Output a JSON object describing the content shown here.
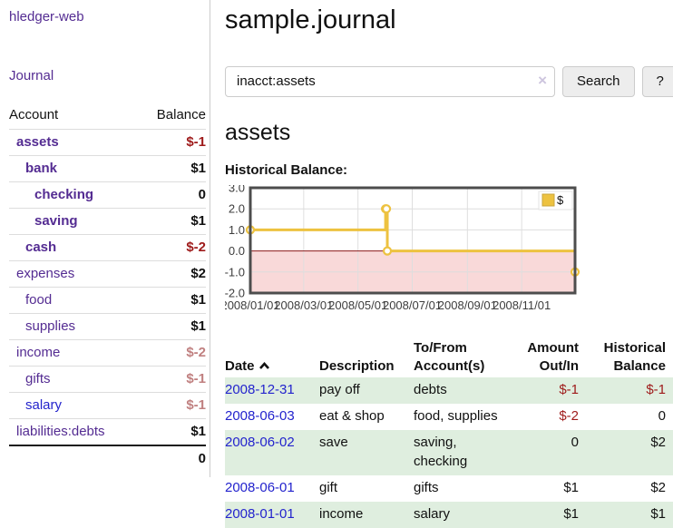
{
  "app": {
    "brand": "hledger-web",
    "nav_journal": "Journal"
  },
  "sidebar": {
    "accounts_header": {
      "account": "Account",
      "balance": "Balance"
    },
    "rows": [
      {
        "name": "assets",
        "indent": 1,
        "bold": true,
        "name_color": "purple",
        "balance": "$-1",
        "balance_style": "negative"
      },
      {
        "name": "bank",
        "indent": 2,
        "bold": true,
        "name_color": "purple",
        "balance": "$1",
        "balance_style": "normal"
      },
      {
        "name": "checking",
        "indent": 3,
        "bold": true,
        "name_color": "purple",
        "balance": "0",
        "balance_style": "normal"
      },
      {
        "name": "saving",
        "indent": 3,
        "bold": true,
        "name_color": "purple",
        "balance": "$1",
        "balance_style": "normal"
      },
      {
        "name": "cash",
        "indent": 2,
        "bold": true,
        "name_color": "purple",
        "balance": "$-2",
        "balance_style": "negative"
      },
      {
        "name": "expenses",
        "indent": 1,
        "bold": false,
        "name_color": "purple",
        "balance": "$2",
        "balance_style": "normal"
      },
      {
        "name": "food",
        "indent": 2,
        "bold": false,
        "name_color": "purple",
        "balance": "$1",
        "balance_style": "normal"
      },
      {
        "name": "supplies",
        "indent": 2,
        "bold": false,
        "name_color": "purple",
        "balance": "$1",
        "balance_style": "normal"
      },
      {
        "name": "income",
        "indent": 1,
        "bold": false,
        "name_color": "purple",
        "balance": "$-2",
        "balance_style": "soft_negative"
      },
      {
        "name": "gifts",
        "indent": 2,
        "bold": false,
        "name_color": "purple",
        "balance": "$-1",
        "balance_style": "soft_negative"
      },
      {
        "name": "salary",
        "indent": 2,
        "bold": false,
        "name_color": "blue",
        "balance": "$-1",
        "balance_style": "soft_negative"
      },
      {
        "name": "liabilities:debts",
        "indent": 1,
        "bold": false,
        "name_color": "purple",
        "balance": "$1",
        "balance_style": "normal"
      }
    ],
    "total": "0"
  },
  "header": {
    "title": "sample.journal"
  },
  "search": {
    "value": "inacct:assets",
    "clear_icon": "×",
    "button": "Search",
    "help_button": "?"
  },
  "account_page": {
    "title": "assets",
    "chart_label": "Historical Balance:"
  },
  "chart_data": {
    "type": "line",
    "step": true,
    "title": "Historical Balance:",
    "series": [
      {
        "name": "$",
        "color": "#edc240",
        "points": [
          {
            "date": "2008-01-01",
            "value": 1
          },
          {
            "date": "2008-06-01",
            "value": 2
          },
          {
            "date": "2008-06-02",
            "value": 2
          },
          {
            "date": "2008-06-03",
            "value": 0
          },
          {
            "date": "2008-12-31",
            "value": -1
          }
        ]
      }
    ],
    "x_range": [
      "2008-01-01",
      "2008-12-31"
    ],
    "x_ticks": [
      "2008/01/01",
      "2008/03/01",
      "2008/05/01",
      "2008/07/01",
      "2008/09/01",
      "2008/11/01"
    ],
    "y_ticks": [
      "3.0",
      "2.0",
      "1.0",
      "0.0",
      "-1.0",
      "-2.0"
    ],
    "ylim": [
      -2,
      3
    ],
    "grid": true,
    "legend": {
      "label": "$",
      "position": "top-right"
    },
    "negative_region_color": "#f9d9d9",
    "zero_line_color": "#8b1a1a"
  },
  "register": {
    "columns": [
      "Date",
      "Description",
      "To/From Account(s)",
      "Amount Out/In",
      "Historical Balance"
    ],
    "sort": "date-ascending",
    "rows": [
      {
        "date": "2008-12-31",
        "description": "pay off",
        "accounts": "debts",
        "amount": "$-1",
        "amount_style": "negative",
        "balance": "$-1",
        "balance_style": "negative"
      },
      {
        "date": "2008-06-03",
        "description": "eat & shop",
        "accounts": "food, supplies",
        "amount": "$-2",
        "amount_style": "negative",
        "balance": "0",
        "balance_style": "normal"
      },
      {
        "date": "2008-06-02",
        "description": "save",
        "accounts": "saving, checking",
        "amount": "0",
        "amount_style": "normal",
        "balance": "$2",
        "balance_style": "normal"
      },
      {
        "date": "2008-06-01",
        "description": "gift",
        "accounts": "gifts",
        "amount": "$1",
        "amount_style": "normal",
        "balance": "$2",
        "balance_style": "normal"
      },
      {
        "date": "2008-01-01",
        "description": "income",
        "accounts": "salary",
        "amount": "$1",
        "amount_style": "normal",
        "balance": "$1",
        "balance_style": "normal"
      }
    ]
  },
  "colors": {
    "link_purple": "#542c92",
    "link_blue": "#2424cc",
    "date_link_blue": "#2323cd",
    "negative_red": "#9e1a1a",
    "soft_negative_red": "#c08080",
    "row_stripe_green": "#dfeedf",
    "series_yellow": "#edc240",
    "chart_border_gray": "#4d4d4d"
  }
}
